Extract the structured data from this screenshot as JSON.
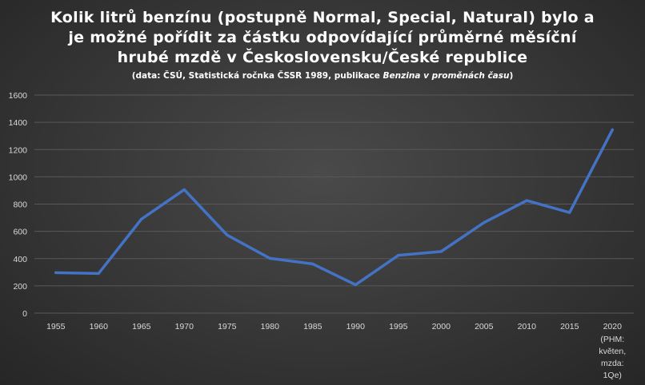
{
  "chart_data": {
    "type": "line",
    "title_lines": [
      "Kolik litrů benzínu (postupně Normal, Special, Natural) bylo a",
      "je možné pořídit za částku odpovídající průměrné měsíční",
      "hrubé mzdě v Československu/České republice"
    ],
    "subtitle_prefix": "(data: ČSÚ, Statistická ročnka ČSSR 1989, publikace ",
    "subtitle_italic": "Benzina v proměnách času",
    "subtitle_suffix": ")",
    "categories": [
      "1955",
      "1960",
      "1965",
      "1970",
      "1975",
      "1980",
      "1985",
      "1990",
      "1995",
      "2000",
      "2005",
      "2010",
      "2015",
      "2020"
    ],
    "category_sublabels": [
      "",
      "",
      "",
      "",
      "",
      "",
      "",
      "",
      "",
      "",
      "",
      "",
      "",
      "(PHM:\nkvěten,\nmzda:\n1Qe)"
    ],
    "series": [
      {
        "values": [
          297,
          291,
          690,
          906,
          573,
          402,
          361,
          208,
          424,
          452,
          664,
          826,
          738,
          1345
        ]
      }
    ],
    "ylim": [
      0,
      1600
    ],
    "yticks": [
      0,
      200,
      400,
      600,
      800,
      1000,
      1200,
      1400,
      1600
    ],
    "grid": true,
    "legend": "none",
    "colors": {
      "line": "#4472c4",
      "grid": "#595959",
      "tick_text": "#d9d9d9"
    }
  }
}
